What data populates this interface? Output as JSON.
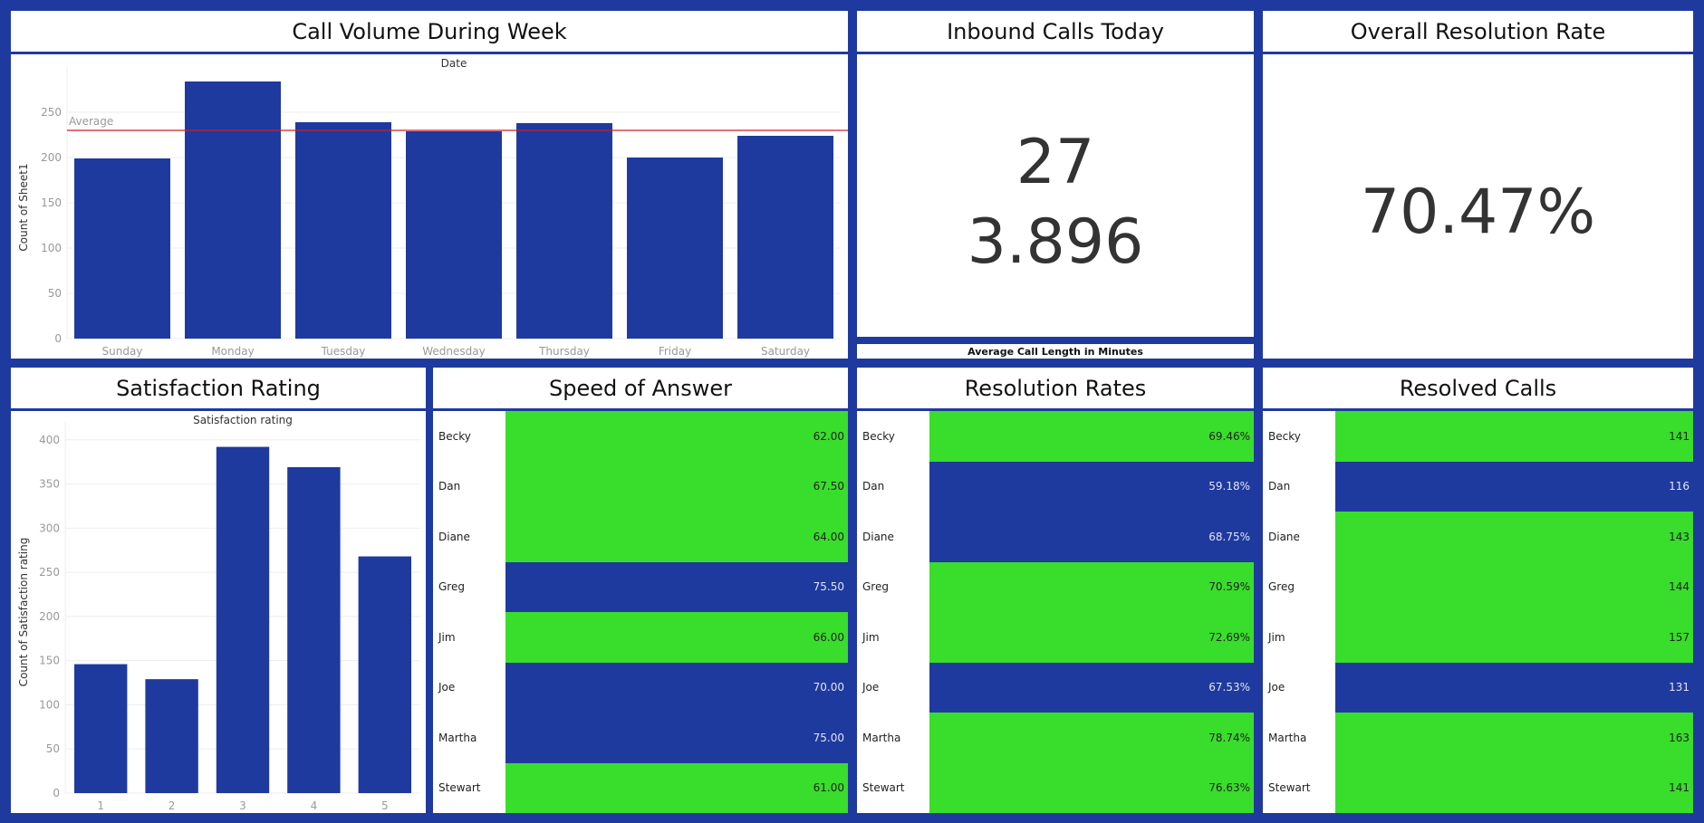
{
  "colors": {
    "background": "#1f3a9e",
    "bar": "#1f3a9e",
    "green": "#39dd2b",
    "average_line": "#cc1f2c"
  },
  "titles": {
    "call_volume": "Call Volume During Week",
    "inbound_calls": "Inbound Calls Today",
    "overall_resolution": "Overall Resolution Rate",
    "satisfaction": "Satisfaction Rating",
    "speed": "Speed of Answer",
    "resolution_rates": "Resolution Rates",
    "resolved_calls": "Resolved Calls"
  },
  "kpis": {
    "inbound_calls_today": "27",
    "avg_call_length": "3.896",
    "avg_call_length_label": "Average Call Length in Minutes",
    "overall_resolution_rate": "70.47%"
  },
  "chart_data": [
    {
      "type": "bar",
      "title": "Date",
      "xlabel": "",
      "ylabel": "Count of Sheet1",
      "categories": [
        "Sunday",
        "Monday",
        "Tuesday",
        "Wednesday",
        "Thursday",
        "Friday",
        "Saturday"
      ],
      "values": [
        199,
        284,
        239,
        229,
        238,
        200,
        224
      ],
      "ylim": [
        0,
        290
      ],
      "yticks": [
        0,
        50,
        100,
        150,
        200,
        250
      ],
      "reference_line": {
        "label": "Average",
        "value": 230
      },
      "grid": true
    },
    {
      "type": "bar",
      "title": "Satisfaction rating",
      "xlabel": "",
      "ylabel": "Count of Satisfaction rating",
      "categories": [
        "1",
        "2",
        "3",
        "4",
        "5"
      ],
      "values": [
        146,
        129,
        392,
        369,
        268
      ],
      "ylim": [
        0,
        410
      ],
      "yticks": [
        0,
        50,
        100,
        150,
        200,
        250,
        300,
        350,
        400
      ],
      "grid": true
    },
    {
      "type": "table",
      "names": [
        "Becky",
        "Dan",
        "Diane",
        "Greg",
        "Jim",
        "Joe",
        "Martha",
        "Stewart"
      ],
      "values": [
        "62.00",
        "67.50",
        "64.00",
        "75.50",
        "66.00",
        "70.00",
        "75.00",
        "61.00"
      ],
      "highlight": [
        "green",
        "green",
        "green",
        "blue",
        "green",
        "blue",
        "blue",
        "green"
      ]
    },
    {
      "type": "table",
      "names": [
        "Becky",
        "Dan",
        "Diane",
        "Greg",
        "Jim",
        "Joe",
        "Martha",
        "Stewart"
      ],
      "values": [
        "69.46%",
        "59.18%",
        "68.75%",
        "70.59%",
        "72.69%",
        "67.53%",
        "78.74%",
        "76.63%"
      ],
      "highlight": [
        "green",
        "blue",
        "blue",
        "green",
        "green",
        "blue",
        "green",
        "green"
      ]
    },
    {
      "type": "table",
      "names": [
        "Becky",
        "Dan",
        "Diane",
        "Greg",
        "Jim",
        "Joe",
        "Martha",
        "Stewart"
      ],
      "values": [
        "141",
        "116",
        "143",
        "144",
        "157",
        "131",
        "163",
        "141"
      ],
      "highlight": [
        "green",
        "blue",
        "green",
        "green",
        "green",
        "blue",
        "green",
        "green"
      ]
    }
  ]
}
